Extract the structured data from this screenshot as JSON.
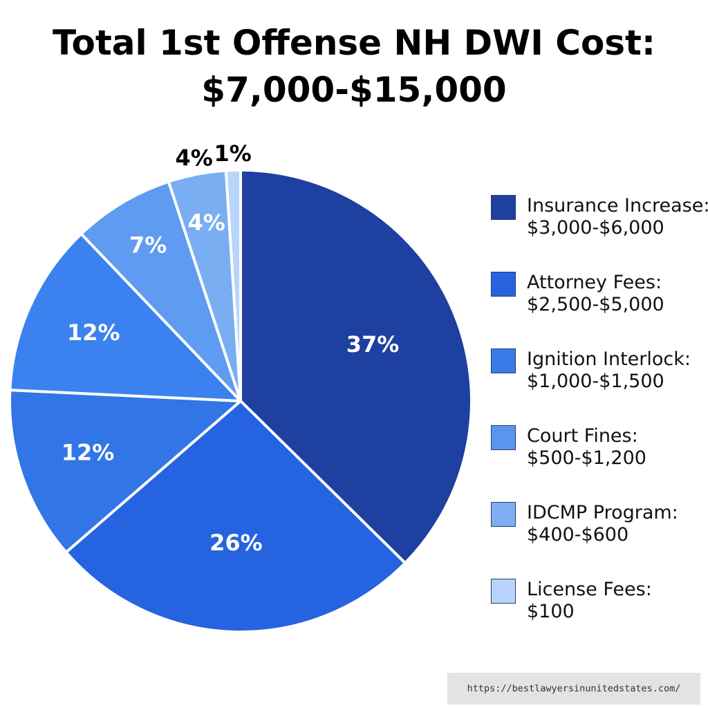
{
  "chart_data": {
    "type": "pie",
    "title_lines": [
      "Total 1st Offense NH DWI Cost:",
      "$7,000-$15,000"
    ],
    "slices": [
      {
        "label": "Insurance Increase:",
        "range": "$3,000-$6,000",
        "value": 37,
        "percent_label": "37%",
        "color": "#1e40a0",
        "label_color": "#ffffff"
      },
      {
        "label": "Attorney Fees:",
        "range": "$2,500-$5,000",
        "value": 26,
        "percent_label": "26%",
        "color": "#2563e0",
        "label_color": "#ffffff"
      },
      {
        "label": "Ignition Interlock:",
        "range": "$1,000-$1,500",
        "value": 12,
        "percent_label": "12%",
        "color": "#3275e6",
        "label_color": "#ffffff"
      },
      {
        "label": "Court Fines:",
        "range": "$500-$1,200",
        "value": 12,
        "percent_label": "12%",
        "color": "#3b82f0",
        "label_color": "#ffffff"
      },
      {
        "label": "IDCMP Program:",
        "range": "$400-$600",
        "value": 7,
        "percent_label": "7%",
        "color": "#5f9bf0",
        "label_color": "#ffffff"
      },
      {
        "label": "",
        "range": "",
        "value": 4,
        "percent_label": "4%",
        "color": "#7aaef2",
        "label_color": "#ffffff",
        "outer_label": "4%"
      },
      {
        "label": "License Fees:",
        "range": "$100",
        "value": 1,
        "percent_label": "",
        "color": "#b8d4fa",
        "label_color": "#000000",
        "outer_label": "1%"
      }
    ],
    "legend": [
      {
        "line1": "Insurance Increase:",
        "line2": "$3,000-$6,000",
        "color": "#1e40a0"
      },
      {
        "line1": "Attorney Fees:",
        "line2": "$2,500-$5,000",
        "color": "#2563e0"
      },
      {
        "line1": "Ignition Interlock:",
        "line2": "$1,000-$1,500",
        "color": "#3b7be8"
      },
      {
        "line1": "Court Fines:",
        "line2": "$500-$1,200",
        "color": "#5a96f0"
      },
      {
        "line1": "IDCMP Program:",
        "line2": "$400-$600",
        "color": "#7eaef2"
      },
      {
        "line1": "License Fees:",
        "line2": "$100",
        "color": "#b8d4fa"
      }
    ],
    "legend_placement": "right"
  },
  "watermark": "https://bestlawyersinunitedstates.com/"
}
